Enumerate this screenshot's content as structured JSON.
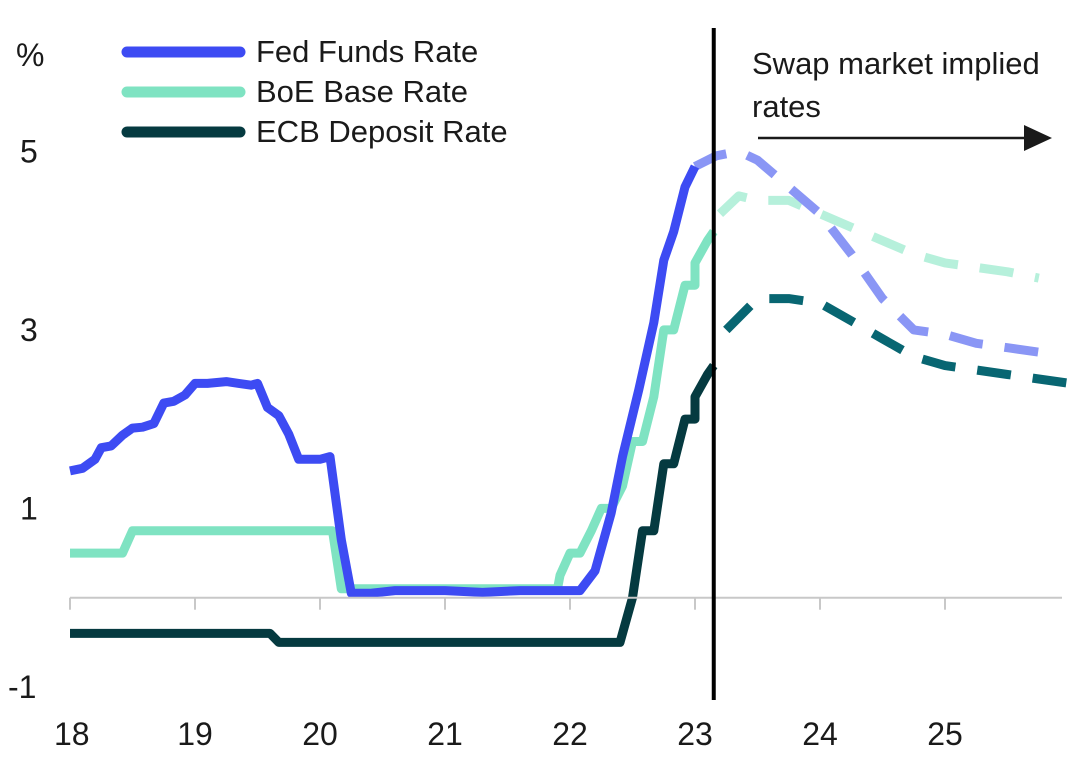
{
  "chart_data": {
    "type": "line",
    "ylabel": "%",
    "xlim": [
      18,
      26
    ],
    "ylim": [
      -1,
      6
    ],
    "x_ticks": [
      18,
      19,
      20,
      21,
      22,
      23,
      24,
      25
    ],
    "x_tick_labels": [
      "18",
      "19",
      "20",
      "21",
      "22",
      "23",
      "24",
      "25"
    ],
    "y_ticks": [
      -1,
      1,
      3,
      5
    ],
    "y_tick_labels": [
      "-1",
      "1",
      "3",
      "5"
    ],
    "grid": false,
    "legend_position": "top-left",
    "divider_x": 23.15,
    "annotation": {
      "lines": [
        "Swap market implied",
        "rates"
      ]
    },
    "series": [
      {
        "name": "Fed Funds Rate",
        "color": "#3d4bf3",
        "forecast_color": "#8a96f5",
        "actual": [
          [
            18.0,
            1.42
          ],
          [
            18.1,
            1.45
          ],
          [
            18.2,
            1.55
          ],
          [
            18.25,
            1.68
          ],
          [
            18.33,
            1.7
          ],
          [
            18.42,
            1.82
          ],
          [
            18.5,
            1.9
          ],
          [
            18.58,
            1.91
          ],
          [
            18.67,
            1.95
          ],
          [
            18.75,
            2.18
          ],
          [
            18.83,
            2.2
          ],
          [
            18.92,
            2.27
          ],
          [
            19.0,
            2.4
          ],
          [
            19.1,
            2.4
          ],
          [
            19.25,
            2.42
          ],
          [
            19.35,
            2.4
          ],
          [
            19.45,
            2.38
          ],
          [
            19.5,
            2.4
          ],
          [
            19.58,
            2.13
          ],
          [
            19.67,
            2.04
          ],
          [
            19.75,
            1.83
          ],
          [
            19.83,
            1.55
          ],
          [
            20.0,
            1.55
          ],
          [
            20.08,
            1.58
          ],
          [
            20.17,
            0.65
          ],
          [
            20.25,
            0.05
          ],
          [
            20.4,
            0.05
          ],
          [
            20.6,
            0.08
          ],
          [
            21.0,
            0.08
          ],
          [
            21.3,
            0.06
          ],
          [
            21.6,
            0.08
          ],
          [
            22.0,
            0.08
          ],
          [
            22.08,
            0.08
          ],
          [
            22.2,
            0.3
          ],
          [
            22.33,
            0.95
          ],
          [
            22.42,
            1.58
          ],
          [
            22.55,
            2.33
          ],
          [
            22.67,
            3.08
          ],
          [
            22.75,
            3.78
          ],
          [
            22.83,
            4.1
          ],
          [
            22.92,
            4.6
          ],
          [
            23.0,
            4.83
          ]
        ],
        "forecast": [
          [
            23.0,
            4.83
          ],
          [
            23.17,
            4.95
          ],
          [
            23.35,
            5.0
          ],
          [
            23.5,
            4.9
          ],
          [
            23.75,
            4.6
          ],
          [
            24.0,
            4.3
          ],
          [
            24.25,
            3.85
          ],
          [
            24.5,
            3.35
          ],
          [
            24.75,
            3.0
          ],
          [
            25.0,
            2.95
          ],
          [
            25.25,
            2.85
          ],
          [
            25.5,
            2.8
          ],
          [
            25.75,
            2.75
          ]
        ]
      },
      {
        "name": "BoE Base Rate",
        "color": "#7fe3c2",
        "forecast_color": "#b6f0db",
        "actual": [
          [
            18.0,
            0.5
          ],
          [
            18.42,
            0.5
          ],
          [
            18.5,
            0.75
          ],
          [
            19.0,
            0.75
          ],
          [
            19.5,
            0.75
          ],
          [
            20.0,
            0.75
          ],
          [
            20.1,
            0.75
          ],
          [
            20.17,
            0.1
          ],
          [
            20.5,
            0.1
          ],
          [
            21.0,
            0.1
          ],
          [
            21.5,
            0.1
          ],
          [
            21.9,
            0.1
          ],
          [
            21.92,
            0.25
          ],
          [
            22.0,
            0.5
          ],
          [
            22.08,
            0.5
          ],
          [
            22.17,
            0.75
          ],
          [
            22.25,
            1.0
          ],
          [
            22.33,
            1.0
          ],
          [
            22.42,
            1.25
          ],
          [
            22.5,
            1.75
          ],
          [
            22.58,
            1.75
          ],
          [
            22.67,
            2.25
          ],
          [
            22.75,
            3.0
          ],
          [
            22.83,
            3.0
          ],
          [
            22.92,
            3.5
          ],
          [
            23.0,
            3.5
          ],
          [
            23.0,
            3.75
          ],
          [
            23.1,
            4.0
          ],
          [
            23.15,
            4.1
          ]
        ],
        "forecast": [
          [
            23.2,
            4.3
          ],
          [
            23.35,
            4.5
          ],
          [
            23.5,
            4.45
          ],
          [
            23.75,
            4.45
          ],
          [
            24.0,
            4.3
          ],
          [
            24.25,
            4.15
          ],
          [
            24.5,
            4.0
          ],
          [
            24.75,
            3.85
          ],
          [
            25.0,
            3.75
          ],
          [
            25.25,
            3.7
          ],
          [
            25.5,
            3.65
          ],
          [
            25.75,
            3.58
          ]
        ]
      },
      {
        "name": "ECB Deposit Rate",
        "color": "#053a40",
        "forecast_color": "#086672",
        "actual": [
          [
            18.0,
            -0.4
          ],
          [
            19.0,
            -0.4
          ],
          [
            19.5,
            -0.4
          ],
          [
            19.6,
            -0.4
          ],
          [
            19.67,
            -0.5
          ],
          [
            20.0,
            -0.5
          ],
          [
            21.0,
            -0.5
          ],
          [
            22.0,
            -0.5
          ],
          [
            22.4,
            -0.5
          ],
          [
            22.5,
            0.0
          ],
          [
            22.58,
            0.75
          ],
          [
            22.67,
            0.75
          ],
          [
            22.75,
            1.5
          ],
          [
            22.83,
            1.5
          ],
          [
            22.92,
            2.0
          ],
          [
            23.0,
            2.0
          ],
          [
            23.0,
            2.25
          ],
          [
            23.1,
            2.5
          ],
          [
            23.15,
            2.6
          ]
        ],
        "forecast": [
          [
            23.25,
            3.0
          ],
          [
            23.5,
            3.35
          ],
          [
            23.75,
            3.35
          ],
          [
            24.0,
            3.3
          ],
          [
            24.25,
            3.1
          ],
          [
            24.5,
            2.9
          ],
          [
            24.75,
            2.7
          ],
          [
            25.0,
            2.6
          ],
          [
            25.25,
            2.55
          ],
          [
            25.5,
            2.5
          ],
          [
            25.75,
            2.45
          ],
          [
            26.0,
            2.4
          ]
        ]
      }
    ]
  }
}
